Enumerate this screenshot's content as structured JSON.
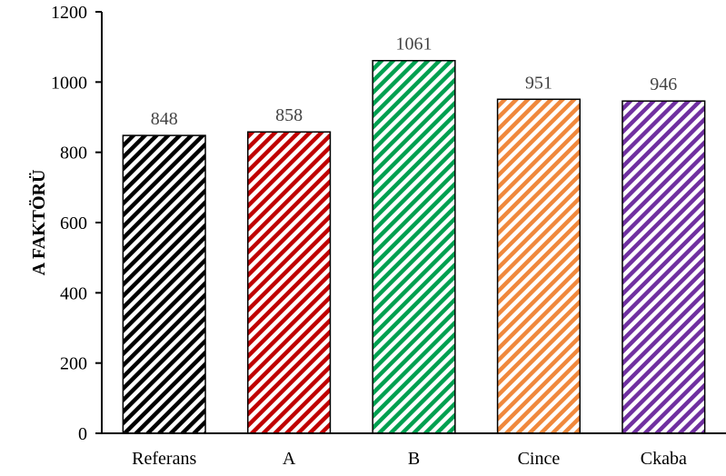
{
  "chart_data": {
    "type": "bar",
    "title": "",
    "xlabel": "",
    "ylabel": "A FAKTÖRÜ",
    "ylim": [
      0,
      1200
    ],
    "yticks": [
      0,
      200,
      400,
      600,
      800,
      1000,
      1200
    ],
    "categories": [
      "Referans",
      "A",
      "B",
      "Cince",
      "Ckaba"
    ],
    "values": [
      848,
      858,
      1061,
      951,
      946
    ],
    "colors": [
      "#000000",
      "#c00000",
      "#00a050",
      "#f0883c",
      "#7030a0"
    ],
    "pattern": "diagonal-hatch",
    "grid": false,
    "legend": "none"
  }
}
